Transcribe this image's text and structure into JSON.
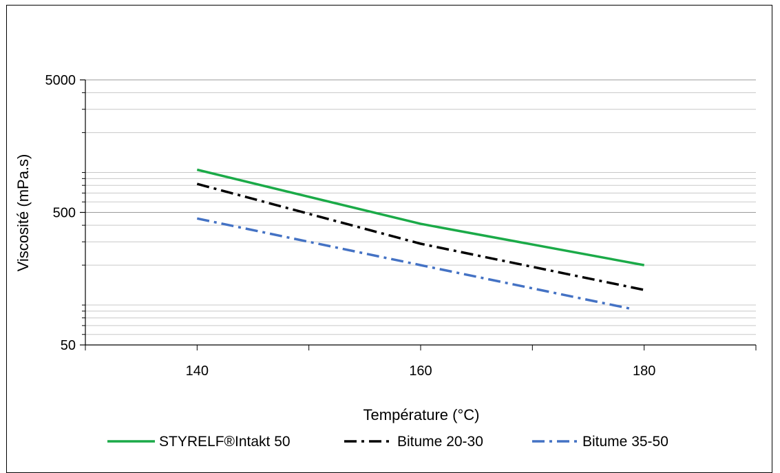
{
  "chart_data": {
    "type": "line",
    "xlabel": "Température (°C)",
    "ylabel": "Viscosité (mPa.s)",
    "xlim": [
      130,
      190
    ],
    "ylim": [
      50,
      5000
    ],
    "yscale": "log",
    "x_ticks": [
      "140",
      "160",
      "180"
    ],
    "y_ticks": [
      "50",
      "500",
      "5000"
    ],
    "grid": "horizontal minor (log)",
    "legend_position": "bottom",
    "series": [
      {
        "name": "STYRELF®Intakt 50",
        "color": "#1BAA48",
        "style": "solid",
        "x": [
          140,
          160,
          180
        ],
        "y": [
          1050,
          410,
          200
        ]
      },
      {
        "name": "Bitume 20-30",
        "color": "#000000",
        "style": "dash-dot",
        "x": [
          140,
          160,
          180
        ],
        "y": [
          820,
          290,
          130
        ]
      },
      {
        "name": "Bitume 35-50",
        "color": "#4472C4",
        "style": "dash-dot",
        "x": [
          140,
          160,
          179
        ],
        "y": [
          450,
          200,
          93
        ]
      }
    ]
  }
}
